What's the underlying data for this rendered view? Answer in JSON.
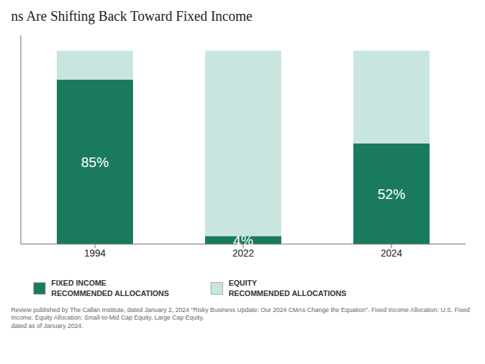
{
  "chart_data": {
    "type": "bar",
    "title": "ns Are Shifting Back Toward Fixed Income",
    "categories": [
      "1994",
      "2022",
      "2024"
    ],
    "series": [
      {
        "name": "FIXED INCOME\nRECOMMENDED ALLOCATIONS",
        "color": "#1a7a5e",
        "values": [
          85,
          4,
          52
        ],
        "data_labels": true,
        "value_labels": [
          "85%",
          "4%",
          "52%"
        ]
      },
      {
        "name": "EQUITY\nRECOMMENDED ALLOCATIONS",
        "color": "#c8e6df",
        "values": [
          100,
          100,
          100
        ]
      }
    ],
    "ylim": [
      0,
      108
    ],
    "tick_labels": "x",
    "annotations": [
      "Review published by The Callan Institute, dated January 2, 2024 \"Risky Business Update: Our 2024 CMAs Change the Equation\". Fixed Income Allocation: U.S. Fixed Income. Equity Allocation: Small-to-Mid Cap Equity, Large Cap Equity,\ndated as of January 2024."
    ]
  }
}
